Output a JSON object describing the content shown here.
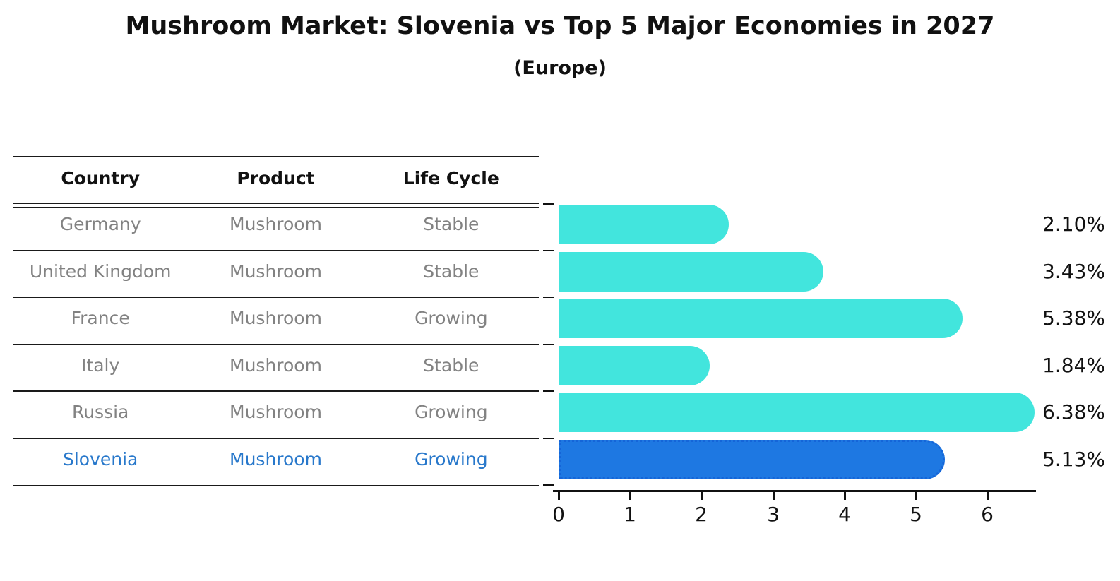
{
  "page": {
    "title": "Mushroom Market: Slovenia vs Top 5 Major Economies in 2027",
    "subtitle": "(Europe)"
  },
  "table": {
    "headers": [
      "Country",
      "Product",
      "Life Cycle"
    ],
    "rows": [
      {
        "country": "Germany",
        "product": "Mushroom",
        "life_cycle": "Stable"
      },
      {
        "country": "United Kingdom",
        "product": "Mushroom",
        "life_cycle": "Stable"
      },
      {
        "country": "France",
        "product": "Mushroom",
        "life_cycle": "Growing"
      },
      {
        "country": "Italy",
        "product": "Mushroom",
        "life_cycle": "Stable"
      },
      {
        "country": "Russia",
        "product": "Mushroom",
        "life_cycle": "Growing"
      },
      {
        "country": "Slovenia",
        "product": "Mushroom",
        "life_cycle": "Growing"
      }
    ]
  },
  "chart_data": {
    "type": "bar",
    "orientation": "horizontal",
    "title": "Mushroom Market: Slovenia vs Top 5 Major Economies in 2027",
    "subtitle": "(Europe)",
    "categories": [
      "Germany",
      "United Kingdom",
      "France",
      "Italy",
      "Russia",
      "Slovenia"
    ],
    "values": [
      2.1,
      3.43,
      5.38,
      1.84,
      6.38,
      5.13
    ],
    "value_labels": [
      "2.10%",
      "3.43%",
      "5.38%",
      "1.84%",
      "6.38%",
      "5.13%"
    ],
    "xticks": [
      "0",
      "1",
      "2",
      "3",
      "4",
      "5",
      "6"
    ],
    "xlim": [
      0,
      6.7
    ],
    "grid": "off",
    "legend": "none",
    "highlight_category": "Slovenia",
    "colors": {
      "bar": "#42E5DD",
      "highlight_bar": "#1E78E2",
      "highlight_border": "#1565D8",
      "highlight_text": "#2878CB",
      "row_text": "#828282",
      "text": "#111111"
    }
  }
}
